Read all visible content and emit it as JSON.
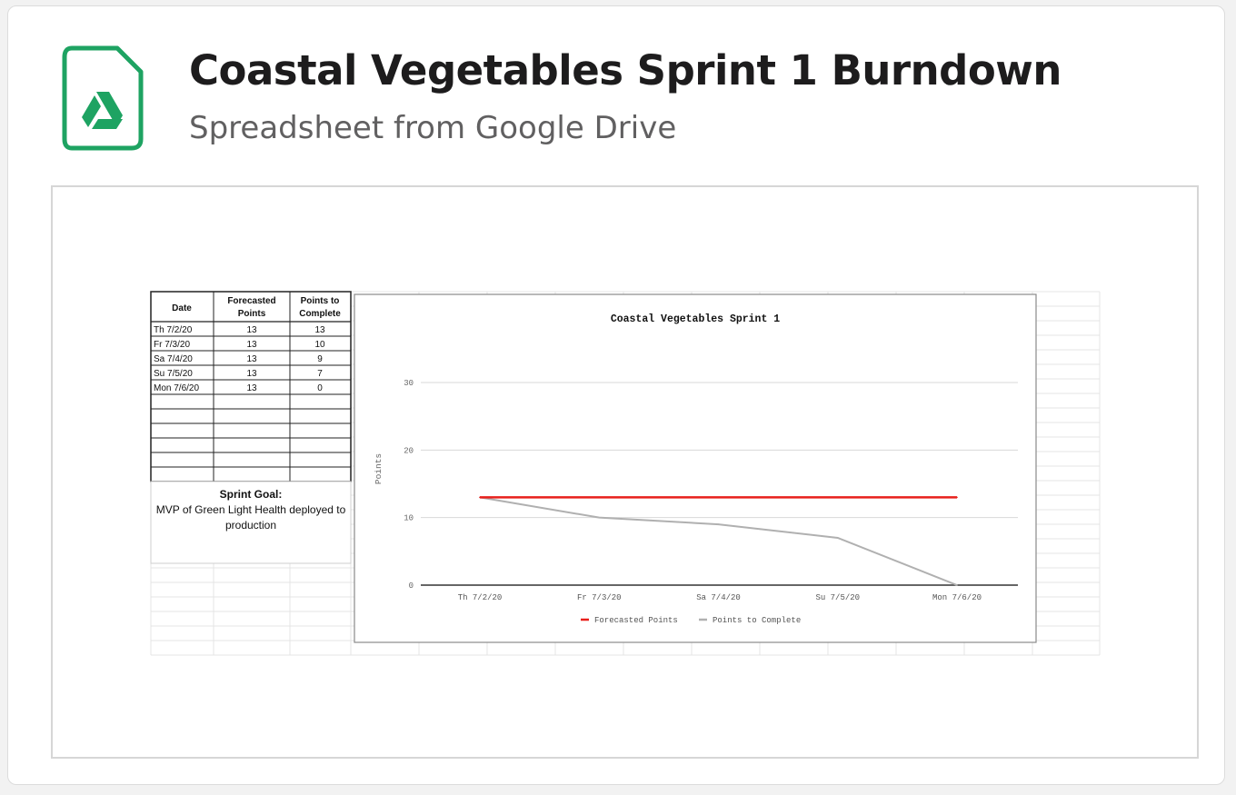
{
  "attachment": {
    "title": "Coastal Vegetables Sprint 1 Burndown",
    "subtitle": "Spreadsheet from Google Drive",
    "icon": "google-drive-spreadsheet-icon",
    "accent_color": "#1ea362"
  },
  "sheet": {
    "headers": [
      "Date",
      [
        "Forecasted",
        "Points"
      ],
      [
        "Points to",
        "Complete"
      ]
    ],
    "rows": [
      [
        "Th 7/2/20",
        "13",
        "13"
      ],
      [
        "Fr 7/3/20",
        "13",
        "10"
      ],
      [
        "Sa 7/4/20",
        "13",
        "9"
      ],
      [
        "Su 7/5/20",
        "13",
        "7"
      ],
      [
        "Mon 7/6/20",
        "13",
        "0"
      ]
    ],
    "sprint_goal_label": "Sprint Goal:",
    "sprint_goal_text": [
      "MVP of Green Light Health deployed to",
      "production"
    ]
  },
  "chart_data": {
    "type": "line",
    "title": "Coastal Vegetables Sprint 1",
    "xlabel": "",
    "ylabel": "Points",
    "categories": [
      "Th 7/2/20",
      "Fr 7/3/20",
      "Sa 7/4/20",
      "Su 7/5/20",
      "Mon 7/6/20"
    ],
    "series": [
      {
        "name": "Forecasted Points",
        "values": [
          13,
          13,
          13,
          13,
          13
        ],
        "color": "#e8201c"
      },
      {
        "name": "Points to Complete",
        "values": [
          13,
          10,
          9,
          7,
          0
        ],
        "color": "#b0b0b0"
      }
    ],
    "ylim": [
      0,
      30
    ],
    "yticks": [
      0,
      10,
      20,
      30
    ],
    "grid": true,
    "legend": "bottom"
  }
}
